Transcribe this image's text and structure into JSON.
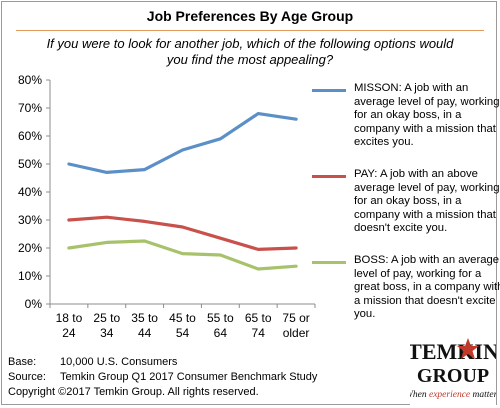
{
  "chart_data": {
    "type": "line",
    "title": "Job Preferences By Age Group",
    "subtitle": "If you were to look for another job, which of the following options would you find the most appealing?",
    "categories": [
      "18 to\n24",
      "25 to\n34",
      "35 to\n44",
      "45 to\n54",
      "55 to\n64",
      "65 to\n74",
      "75 or\nolder"
    ],
    "ylim": [
      0,
      80
    ],
    "yticks": [
      "0%",
      "10%",
      "20%",
      "30%",
      "40%",
      "50%",
      "60%",
      "70%",
      "80%"
    ],
    "grid": false,
    "legend_position": "right",
    "series": [
      {
        "name": "MISSON: A job with an average level of pay, working for an okay boss, in a company with a mission that excites you.",
        "color": "#5b8fc7",
        "values": [
          50,
          47,
          48,
          55,
          59,
          68,
          66
        ]
      },
      {
        "name": "PAY: A job with an above average level of pay, working for an okay boss, in a company with a mission that doesn't excite you.",
        "color": "#c9514b",
        "values": [
          30,
          31,
          29.5,
          27.5,
          23.5,
          19.5,
          20
        ]
      },
      {
        "name": "BOSS: A job with an average level of pay, working for a great boss, in a company with a mission that doesn't excite you.",
        "color": "#a7c26a",
        "values": [
          20,
          22,
          22.5,
          18,
          17.5,
          12.5,
          13.5
        ]
      }
    ]
  },
  "footer": {
    "base_label": "Base:",
    "base_value": "10,000 U.S. Consumers",
    "source_label": "Source:",
    "source_value": "Temkin Group Q1 2017 Consumer Benchmark Study",
    "copyright": "Copyright ©2017 Temkin Group. All rights reserved."
  },
  "logo": {
    "line1": "TEMKIN",
    "line2": "GROUP",
    "tagline_pre": "When ",
    "tagline_em": "experience",
    "tagline_post": " matters"
  }
}
